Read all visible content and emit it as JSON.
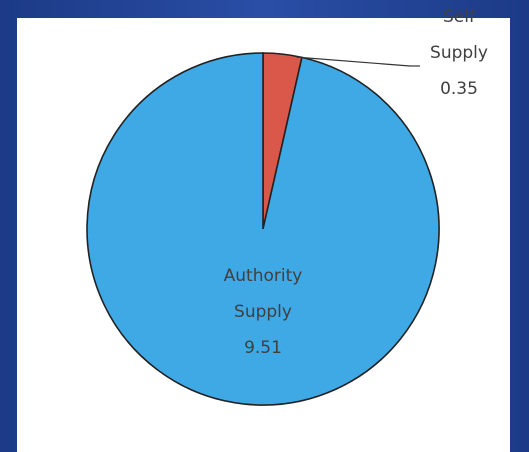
{
  "chart_data": {
    "type": "pie",
    "slices": [
      {
        "label_lines": [
          "Self",
          "Supply",
          "0.35"
        ],
        "name": "Self Supply",
        "value": 0.35,
        "color": "#d9584a"
      },
      {
        "label_lines": [
          "Authority",
          "Supply",
          "9.51"
        ],
        "name": "Authority Supply",
        "value": 9.51,
        "color": "#3fa9e6"
      }
    ],
    "title": "",
    "legend": "none",
    "data_labels": "on-slice / leader line"
  }
}
